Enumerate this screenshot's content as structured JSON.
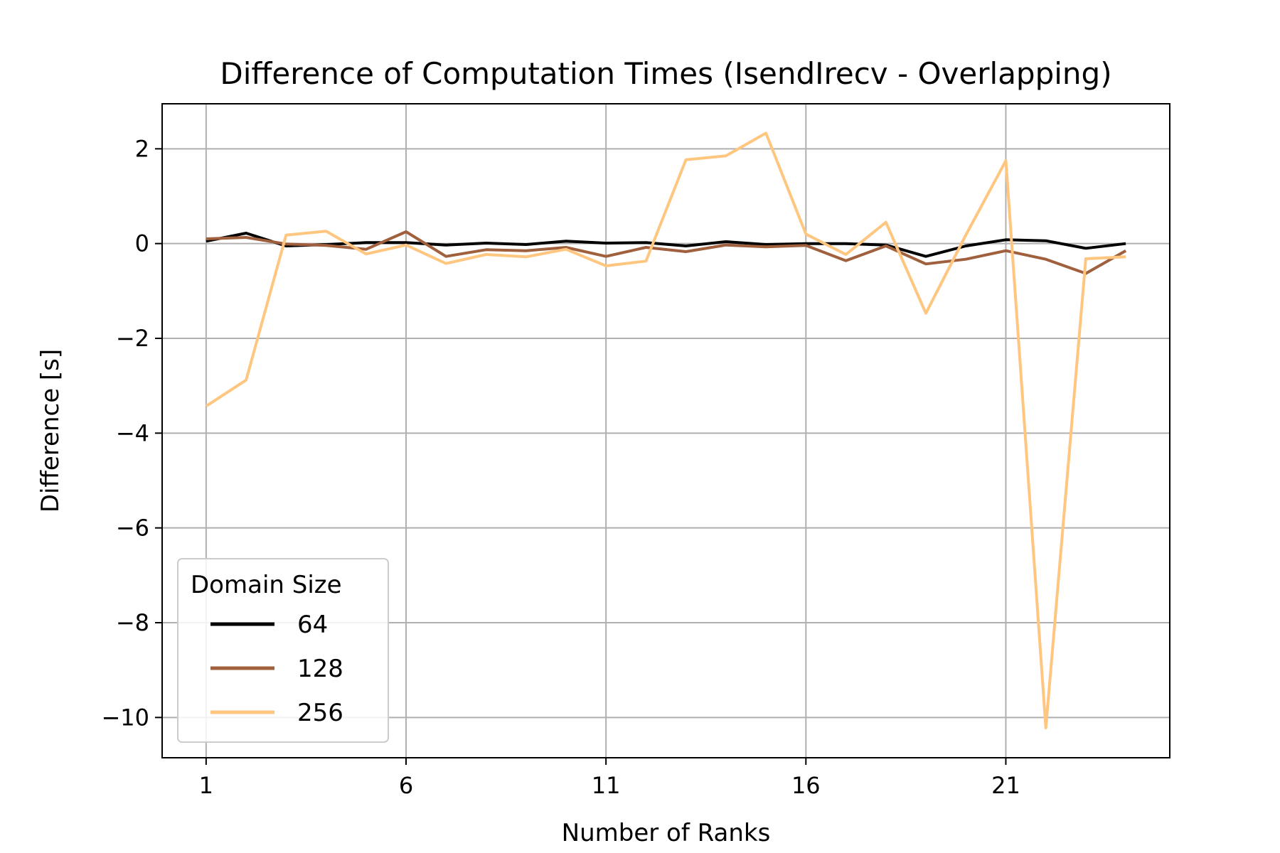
{
  "chart_data": {
    "type": "line",
    "title": "Difference of Computation Times (IsendIrecv - Overlapping)",
    "xlabel": "Number of Ranks",
    "ylabel": "Difference [s]",
    "xlim": [
      -0.1,
      25.1
    ],
    "ylim": [
      -10.85,
      2.95
    ],
    "xticks": [
      1,
      6,
      11,
      16,
      21
    ],
    "xtick_labels": [
      "1",
      "6",
      "11",
      "16",
      "21"
    ],
    "yticks": [
      2,
      0,
      -2,
      -4,
      -6,
      -8,
      -10
    ],
    "ytick_labels": [
      "2",
      "0",
      "−2",
      "−4",
      "−6",
      "−8",
      "−10"
    ],
    "grid": true,
    "legend": {
      "title": "Domain Size",
      "placement": "lower-left"
    },
    "x": [
      1,
      2,
      3,
      4,
      5,
      6,
      7,
      8,
      9,
      10,
      11,
      12,
      13,
      14,
      15,
      16,
      17,
      18,
      19,
      20,
      21,
      22,
      23,
      24
    ],
    "series": [
      {
        "name": "64",
        "color": "#000000",
        "values": [
          0.05,
          0.22,
          -0.05,
          -0.02,
          0.02,
          0.02,
          -0.03,
          0.01,
          -0.02,
          0.05,
          0.01,
          0.02,
          -0.05,
          0.04,
          -0.02,
          0.0,
          0.0,
          -0.03,
          -0.27,
          -0.05,
          0.08,
          0.06,
          -0.1,
          0.0
        ]
      },
      {
        "name": "128",
        "color": "#a0603d",
        "values": [
          0.1,
          0.13,
          -0.01,
          -0.04,
          -0.12,
          0.25,
          -0.27,
          -0.13,
          -0.15,
          -0.08,
          -0.27,
          -0.08,
          -0.17,
          -0.03,
          -0.07,
          -0.04,
          -0.36,
          -0.05,
          -0.43,
          -0.33,
          -0.15,
          -0.33,
          -0.63,
          -0.15
        ]
      },
      {
        "name": "256",
        "color": "#ffc680",
        "values": [
          -3.43,
          -2.88,
          0.18,
          0.26,
          -0.22,
          -0.03,
          -0.42,
          -0.23,
          -0.28,
          -0.12,
          -0.47,
          -0.37,
          1.77,
          1.85,
          2.33,
          0.2,
          -0.23,
          0.45,
          -1.47,
          0.18,
          1.75,
          -10.22,
          -0.32,
          -0.28
        ]
      }
    ]
  }
}
